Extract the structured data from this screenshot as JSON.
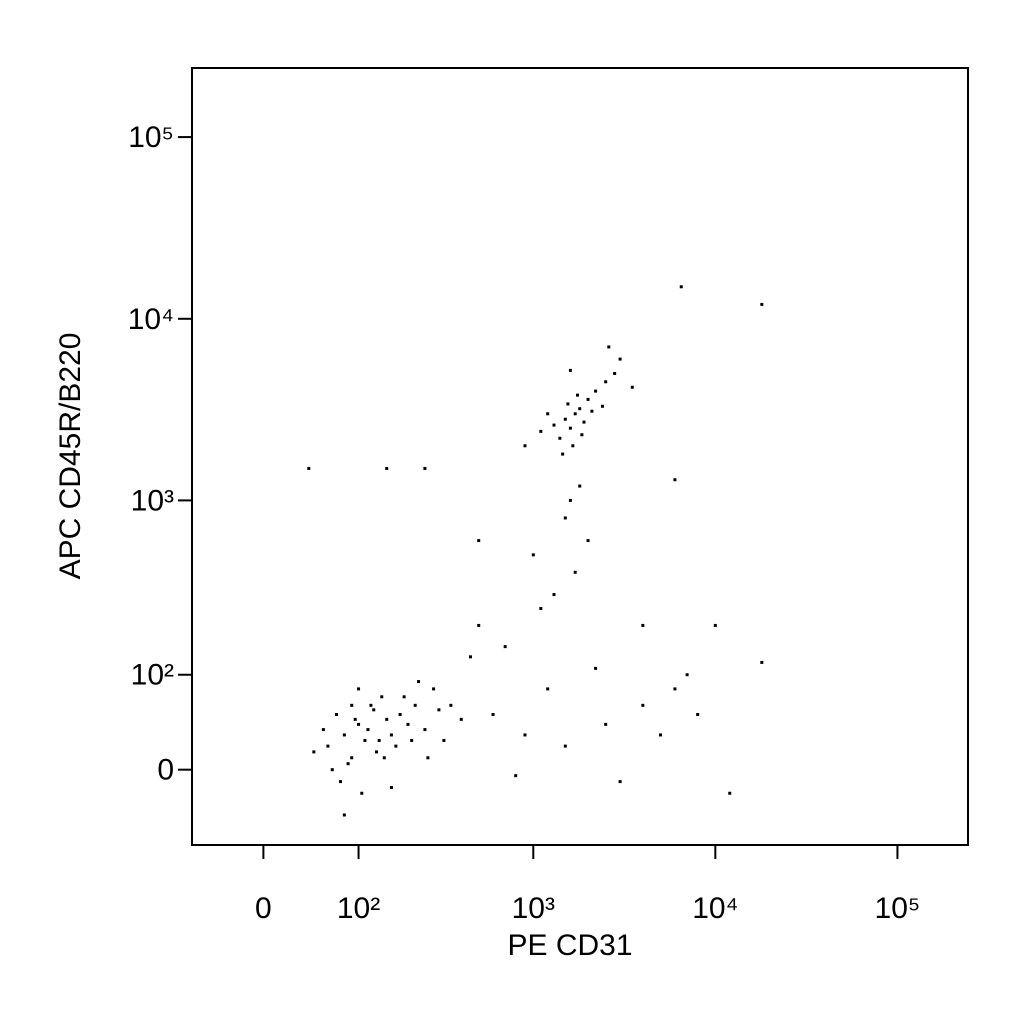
{
  "chart_data": {
    "type": "scatter",
    "x_label": "PE CD31",
    "y_label": "APC CD45R/B220",
    "xscale": "asinh",
    "yscale": "asinh",
    "xlim": [
      -68,
      244000
    ],
    "ylim": [
      -73,
      240000
    ],
    "xticks": [
      0,
      {
        "value": 100,
        "label": "10²"
      },
      {
        "value": 1000,
        "label": "10³"
      },
      {
        "value": 10000,
        "label": "10⁴"
      },
      {
        "value": 100000,
        "label": "10⁵"
      }
    ],
    "yticks": [
      0,
      {
        "value": 100,
        "label": "10²"
      },
      {
        "value": 1000,
        "label": "10³"
      },
      {
        "value": 10000,
        "label": "10⁴"
      },
      {
        "value": 100000,
        "label": "10⁵"
      }
    ],
    "color": "#000000",
    "x": [
      60,
      80,
      90,
      100,
      110,
      70,
      120,
      150,
      130,
      160,
      180,
      200,
      90,
      75,
      85,
      140,
      170,
      220,
      250,
      300,
      55,
      65,
      105,
      95,
      115,
      125,
      135,
      145,
      190,
      210,
      280,
      350,
      400,
      45,
      100,
      160,
      80,
      230,
      260,
      320,
      1500,
      1800,
      1600,
      2000,
      1400,
      1700,
      2200,
      1300,
      1900,
      2500,
      1550,
      1650,
      2100,
      1200,
      2800,
      1750,
      1450,
      3000,
      1100,
      2400,
      1850,
      1600,
      3500,
      900,
      2600,
      500,
      700,
      1000,
      1500,
      1800,
      1300,
      2000,
      600,
      900,
      1500,
      2500,
      4000,
      6000,
      7000,
      3000,
      5000,
      800,
      1200,
      1700,
      1600,
      4000,
      8000,
      500,
      250,
      40,
      150,
      12000,
      18000,
      18000,
      6500,
      10000,
      450,
      1100,
      2200,
      6000
    ],
    "y": [
      20,
      30,
      10,
      40,
      25,
      50,
      60,
      45,
      15,
      30,
      50,
      40,
      60,
      -10,
      5,
      70,
      20,
      60,
      35,
      55,
      35,
      0,
      -20,
      45,
      35,
      55,
      25,
      10,
      70,
      25,
      80,
      60,
      45,
      15,
      80,
      -15,
      -40,
      90,
      10,
      25,
      2800,
      3200,
      2500,
      3600,
      2200,
      3000,
      4000,
      2600,
      2700,
      4500,
      3400,
      2000,
      3100,
      3000,
      5000,
      3800,
      1800,
      6000,
      2400,
      3300,
      2300,
      5200,
      4200,
      2000,
      7000,
      200,
      150,
      500,
      800,
      1200,
      300,
      600,
      50,
      30,
      20,
      40,
      60,
      80,
      100,
      -10,
      30,
      -5,
      80,
      400,
      1000,
      200,
      50,
      600,
      1500,
      1500,
      1500,
      -20,
      120,
      12000,
      15000,
      200,
      130,
      250,
      110,
      1300
    ]
  }
}
